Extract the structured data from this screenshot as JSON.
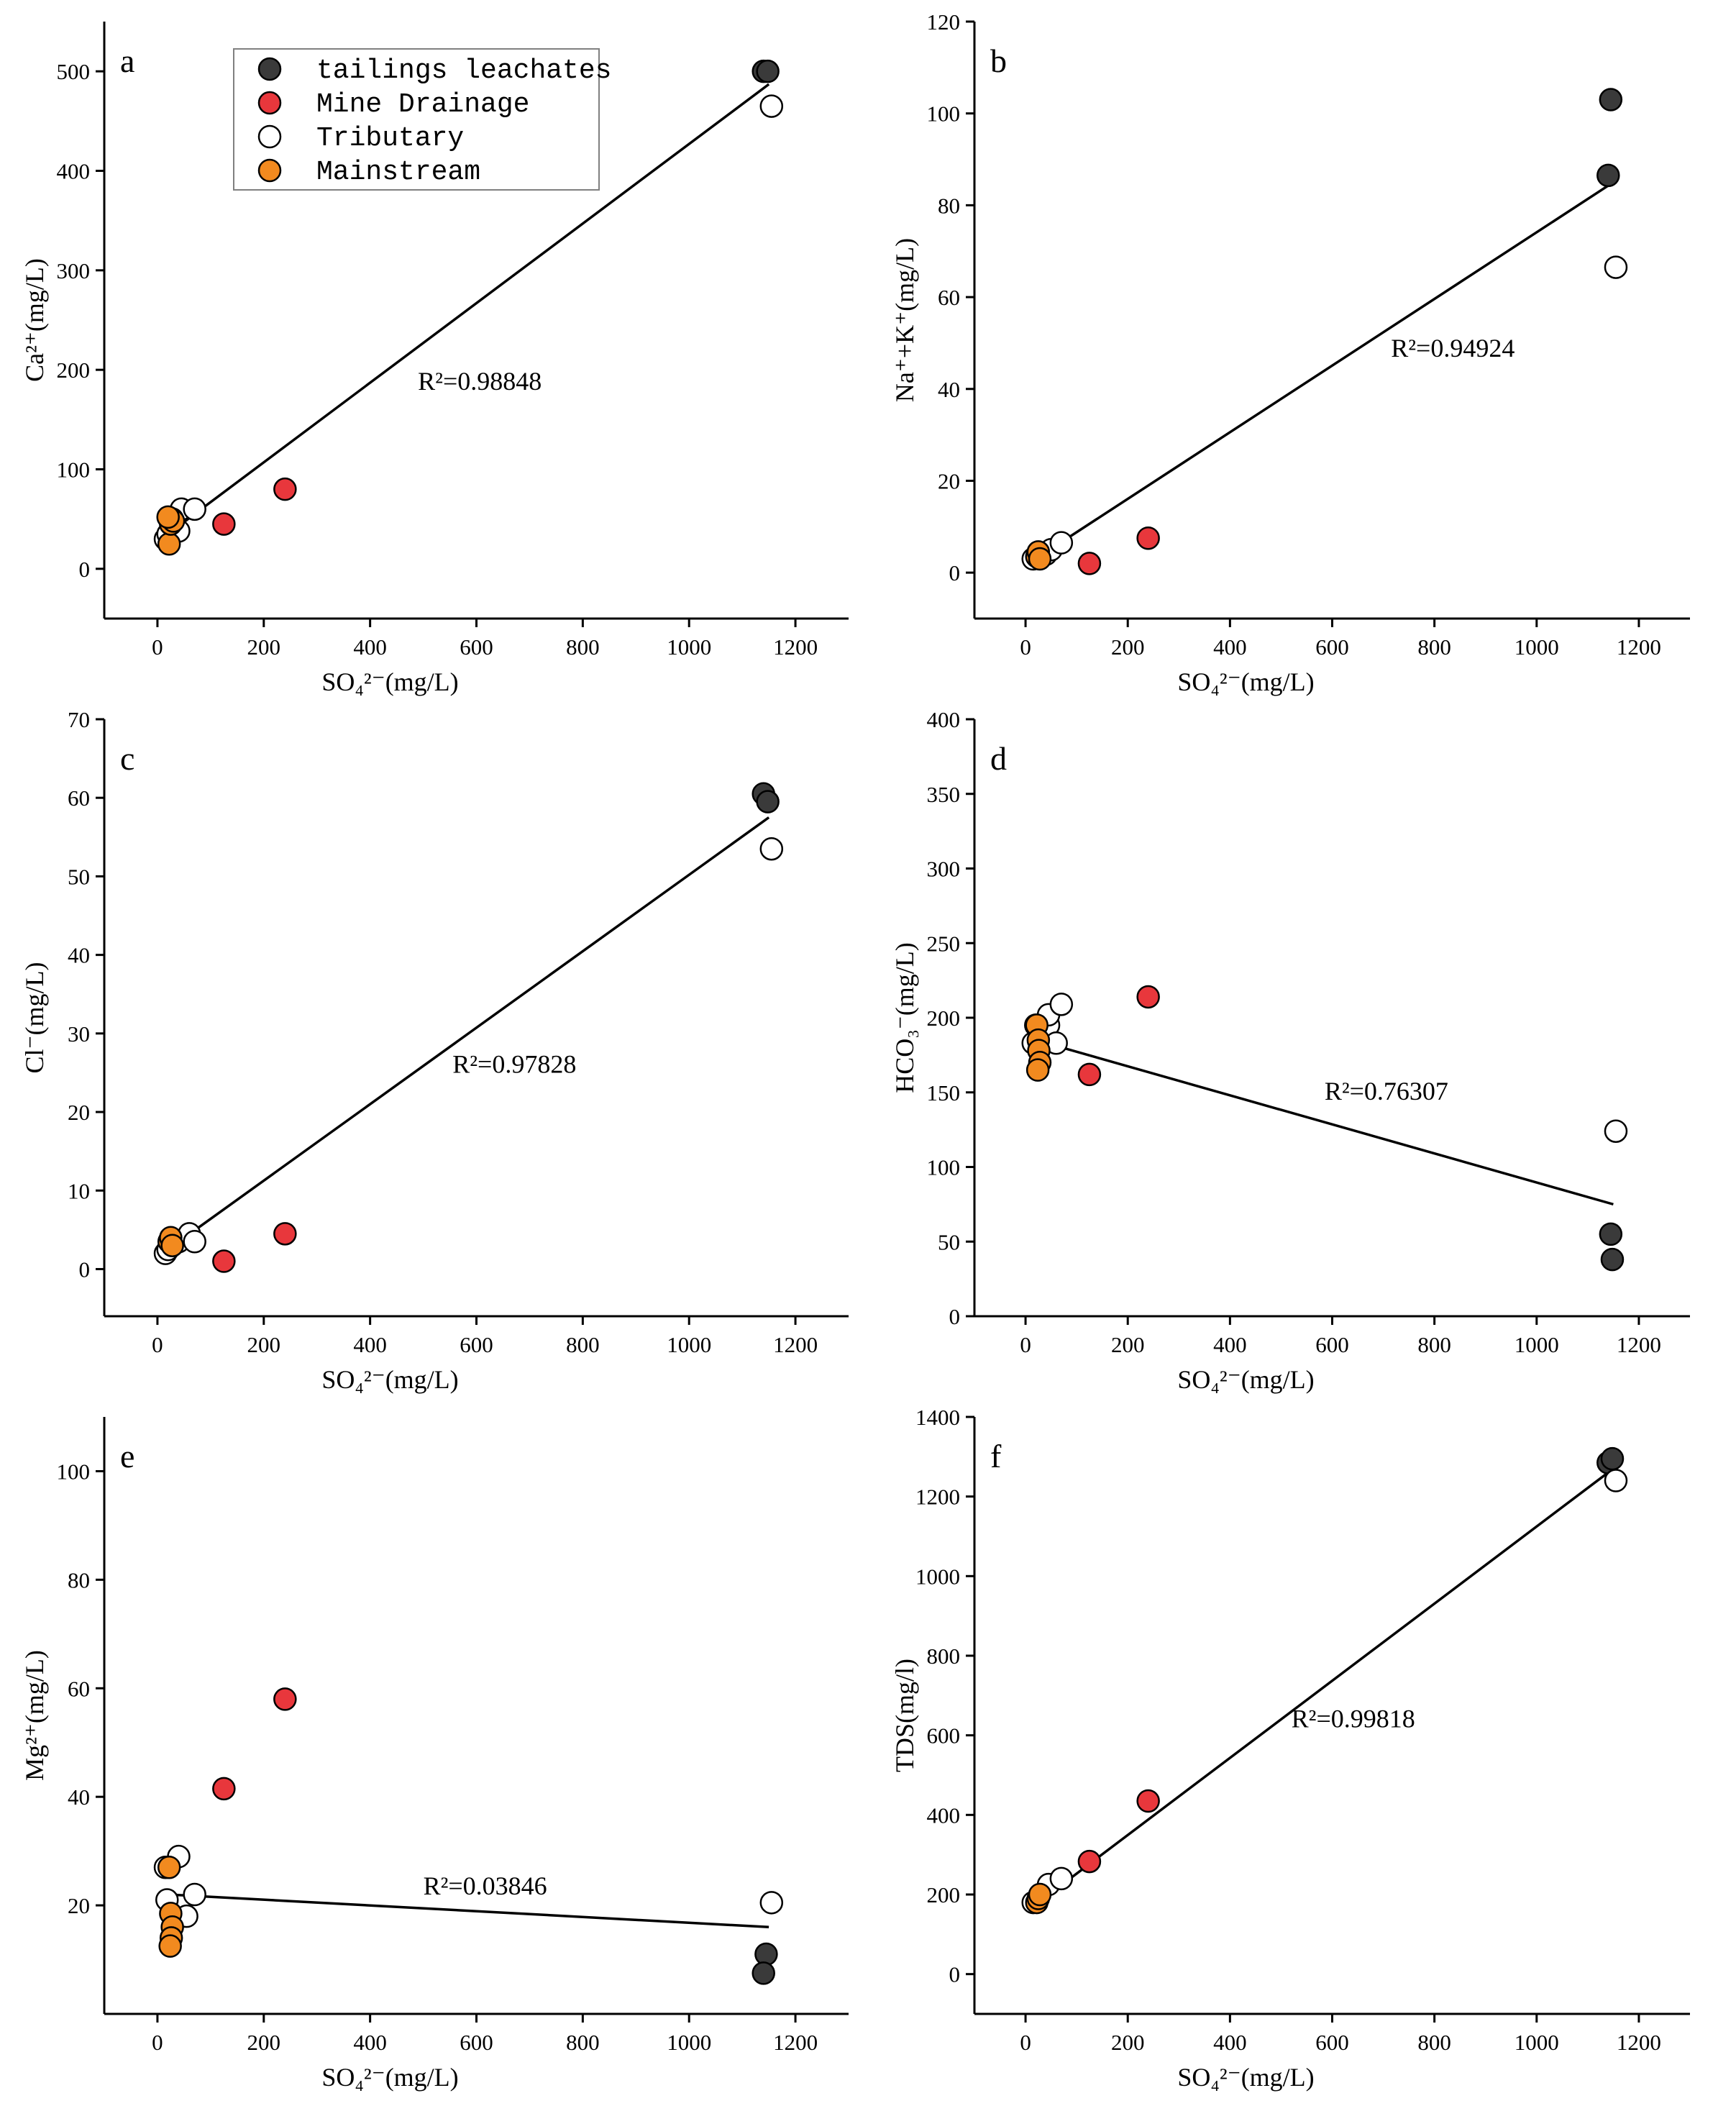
{
  "legend": [
    {
      "name": "tailings leachates",
      "color": "#3a3a3a"
    },
    {
      "name": "Mine Drainage",
      "color": "#e8373c"
    },
    {
      "name": "Tributary",
      "color": "#ffffff"
    },
    {
      "name": "Mainstream",
      "color": "#f28a1f"
    }
  ],
  "chart_data": [
    {
      "type": "scatter",
      "panel": "a",
      "xlabel": "SO₄²⁻(mg/L)",
      "ylabel": "Ca²⁺(mg/L)",
      "xlim": [
        -100,
        1300
      ],
      "ylim": [
        -50,
        550
      ],
      "xticks": [
        0,
        200,
        400,
        600,
        800,
        1000,
        1200
      ],
      "yticks": [
        0,
        100,
        200,
        300,
        400,
        500
      ],
      "fit": {
        "x": [
          20,
          1150
        ],
        "y": [
          35,
          487
        ]
      },
      "r2_label": "R²=0.98848",
      "r2_pos": [
        490,
        180
      ],
      "series": [
        {
          "name": "tailings leachates",
          "points": [
            [
              1140,
              500
            ],
            [
              1148,
              500
            ]
          ]
        },
        {
          "name": "Mine Drainage",
          "points": [
            [
              125,
              45
            ],
            [
              240,
              80
            ]
          ]
        },
        {
          "name": "Tributary",
          "points": [
            [
              1155,
              465
            ],
            [
              15,
              30
            ],
            [
              20,
              35
            ],
            [
              25,
              45
            ],
            [
              40,
              38
            ],
            [
              45,
              60
            ],
            [
              70,
              60
            ]
          ]
        },
        {
          "name": "Mainstream",
          "points": [
            [
              22,
              25
            ],
            [
              25,
              45
            ],
            [
              28,
              50
            ],
            [
              30,
              48
            ],
            [
              20,
              52
            ]
          ]
        }
      ]
    },
    {
      "type": "scatter",
      "panel": "b",
      "xlabel": "SO₄²⁻(mg/L)",
      "ylabel": "Na⁺+K⁺(mg/L)",
      "xlim": [
        -100,
        1300
      ],
      "ylim": [
        -10,
        120
      ],
      "xticks": [
        0,
        200,
        400,
        600,
        800,
        1000,
        1200
      ],
      "yticks": [
        0,
        20,
        40,
        60,
        80,
        100,
        120
      ],
      "fit": {
        "x": [
          20,
          1150
        ],
        "y": [
          3,
          85
        ]
      },
      "r2_label": "R²=0.94924",
      "r2_pos": [
        715,
        47
      ],
      "series": [
        {
          "name": "tailings leachates",
          "points": [
            [
              1145,
              103
            ],
            [
              1140,
              86.5
            ]
          ]
        },
        {
          "name": "Mine Drainage",
          "points": [
            [
              125,
              2
            ],
            [
              240,
              7.5
            ]
          ]
        },
        {
          "name": "Tributary",
          "points": [
            [
              1155,
              66.5
            ],
            [
              15,
              3
            ],
            [
              40,
              4
            ],
            [
              50,
              5
            ],
            [
              70,
              6.5
            ]
          ]
        },
        {
          "name": "Mainstream",
          "points": [
            [
              22,
              3.5
            ],
            [
              25,
              4.5
            ],
            [
              28,
              3
            ]
          ]
        }
      ]
    },
    {
      "type": "scatter",
      "panel": "c",
      "xlabel": "SO₄²⁻(mg/L)",
      "ylabel": "Cl⁻(mg/L)",
      "xlim": [
        -100,
        1300
      ],
      "ylim": [
        -6,
        70
      ],
      "xticks": [
        0,
        200,
        400,
        600,
        800,
        1000,
        1200
      ],
      "yticks": [
        0,
        10,
        20,
        30,
        40,
        50,
        60,
        70
      ],
      "fit": {
        "x": [
          20,
          1150
        ],
        "y": [
          2.5,
          57.5
        ]
      },
      "r2_label": "R²=0.97828",
      "r2_pos": [
        555,
        25
      ],
      "series": [
        {
          "name": "tailings leachates",
          "points": [
            [
              1140,
              60.5
            ],
            [
              1148,
              59.5
            ]
          ]
        },
        {
          "name": "Mine Drainage",
          "points": [
            [
              125,
              1
            ],
            [
              240,
              4.5
            ]
          ]
        },
        {
          "name": "Tributary",
          "points": [
            [
              1155,
              53.5
            ],
            [
              15,
              2
            ],
            [
              20,
              2.5
            ],
            [
              40,
              3.5
            ],
            [
              60,
              4.5
            ],
            [
              70,
              3.5
            ]
          ]
        },
        {
          "name": "Mainstream",
          "points": [
            [
              22,
              3.5
            ],
            [
              25,
              4
            ],
            [
              28,
              3
            ]
          ]
        }
      ]
    },
    {
      "type": "scatter",
      "panel": "d",
      "xlabel": "SO₄²⁻(mg/L)",
      "ylabel": "HCO₃⁻(mg/L)",
      "xlim": [
        -100,
        1300
      ],
      "ylim": [
        0,
        400
      ],
      "xticks": [
        0,
        200,
        400,
        600,
        800,
        1000,
        1200
      ],
      "yticks": [
        0,
        50,
        100,
        150,
        200,
        250,
        300,
        350,
        400
      ],
      "fit": {
        "x": [
          20,
          1150
        ],
        "y": [
          185,
          75
        ]
      },
      "r2_label": "R²=0.76307",
      "r2_pos": [
        585,
        145
      ],
      "series": [
        {
          "name": "tailings leachates",
          "points": [
            [
              1145,
              55
            ],
            [
              1148,
              38
            ]
          ]
        },
        {
          "name": "Mine Drainage",
          "points": [
            [
              125,
              162
            ],
            [
              240,
              214
            ]
          ]
        },
        {
          "name": "Tributary",
          "points": [
            [
              1155,
              124
            ],
            [
              15,
              183
            ],
            [
              20,
              195
            ],
            [
              45,
              195
            ],
            [
              45,
              202
            ],
            [
              60,
              183
            ],
            [
              70,
              209
            ]
          ]
        },
        {
          "name": "Mainstream",
          "points": [
            [
              22,
              195
            ],
            [
              25,
              185
            ],
            [
              26,
              178
            ],
            [
              28,
              170
            ],
            [
              24,
              165
            ]
          ]
        }
      ]
    },
    {
      "type": "scatter",
      "panel": "e",
      "xlabel": "SO₄²⁻(mg/L)",
      "ylabel": "Mg²⁺(mg/L)",
      "xlim": [
        -100,
        1300
      ],
      "ylim": [
        0,
        110
      ],
      "xticks": [
        0,
        200,
        400,
        600,
        800,
        1000,
        1200
      ],
      "yticks": [
        20,
        40,
        60,
        80,
        100
      ],
      "fit": {
        "x": [
          20,
          1150
        ],
        "y": [
          22,
          16
        ]
      },
      "r2_label": "R²=0.03846",
      "r2_pos": [
        500,
        22
      ],
      "series": [
        {
          "name": "tailings leachates",
          "points": [
            [
              1145,
              11
            ],
            [
              1140,
              7.5
            ]
          ]
        },
        {
          "name": "Mine Drainage",
          "points": [
            [
              125,
              41.5
            ],
            [
              240,
              58
            ]
          ]
        },
        {
          "name": "Tributary",
          "points": [
            [
              1155,
              20.5
            ],
            [
              15,
              27
            ],
            [
              18,
              21
            ],
            [
              40,
              29
            ],
            [
              55,
              18
            ],
            [
              70,
              22
            ]
          ]
        },
        {
          "name": "Mainstream",
          "points": [
            [
              22,
              27
            ],
            [
              25,
              18.5
            ],
            [
              28,
              16
            ],
            [
              26,
              14
            ],
            [
              24,
              12.5
            ]
          ]
        }
      ]
    },
    {
      "type": "scatter",
      "panel": "f",
      "xlabel": "SO₄²⁻(mg/L)",
      "ylabel": "TDS(mg/l)",
      "xlim": [
        -100,
        1300
      ],
      "ylim": [
        -100,
        1400
      ],
      "xticks": [
        0,
        200,
        400,
        600,
        800,
        1000,
        1200
      ],
      "yticks": [
        0,
        200,
        400,
        600,
        800,
        1000,
        1200,
        1400
      ],
      "fit": {
        "x": [
          20,
          1150
        ],
        "y": [
          175,
          1270
        ]
      },
      "r2_label": "R²=0.99818",
      "r2_pos": [
        520,
        620
      ],
      "series": [
        {
          "name": "tailings leachates",
          "points": [
            [
              1140,
              1285
            ],
            [
              1148,
              1295
            ]
          ]
        },
        {
          "name": "Mine Drainage",
          "points": [
            [
              125,
              283
            ],
            [
              240,
              435
            ]
          ]
        },
        {
          "name": "Tributary",
          "points": [
            [
              1155,
              1240
            ],
            [
              15,
              180
            ],
            [
              45,
              225
            ],
            [
              70,
              240
            ]
          ]
        },
        {
          "name": "Mainstream",
          "points": [
            [
              22,
              180
            ],
            [
              25,
              190
            ],
            [
              28,
              200
            ]
          ]
        }
      ]
    }
  ]
}
